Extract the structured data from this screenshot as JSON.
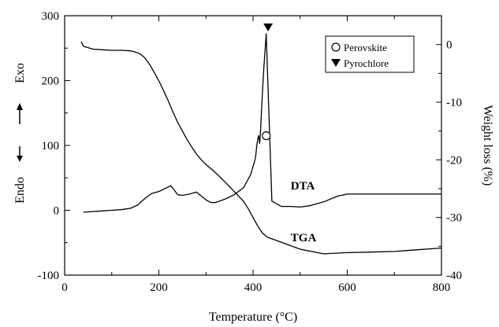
{
  "chart_data": {
    "type": "line",
    "xlabel": "Temperature (°C)",
    "ylabel_left": "Endo ⟷ Exo",
    "ylabel_left_parts": {
      "endo": "Endo",
      "exo": "Exo"
    },
    "ylabel_right": "Weight loss (%)",
    "xlim": [
      0,
      800
    ],
    "ylim_left": [
      -100,
      300
    ],
    "ylim_right": [
      -40,
      5
    ],
    "x_ticks": [
      0,
      200,
      400,
      600,
      800
    ],
    "y_left_ticks": [
      -100,
      0,
      100,
      200,
      300
    ],
    "y_right_ticks": [
      0,
      -10,
      -20,
      -30,
      -40
    ],
    "x_tick_labels": [
      "0",
      "200",
      "400",
      "600",
      "800"
    ],
    "y_left_tick_labels": [
      "-100",
      "0",
      "100",
      "200",
      "300"
    ],
    "y_right_tick_labels": [
      "0",
      "-10",
      "-20",
      "-30",
      "-40"
    ],
    "grid": false,
    "legend_position": "top-right",
    "legend": [
      {
        "label": "Perovskite",
        "marker": "open-circle"
      },
      {
        "label": "Pyrochlore",
        "marker": "filled-triangle-down"
      }
    ],
    "series": [
      {
        "name": "DTA",
        "axis": "left",
        "x": [
          40,
          60,
          80,
          100,
          120,
          140,
          155,
          170,
          185,
          200,
          215,
          225,
          232,
          240,
          250,
          265,
          280,
          290,
          300,
          310,
          320,
          340,
          360,
          380,
          395,
          405,
          408,
          410,
          412,
          414,
          416,
          419,
          423,
          428,
          440,
          460,
          480,
          500,
          520,
          550,
          580,
          600,
          650,
          700,
          750,
          800
        ],
        "y": [
          -3,
          -2,
          -1,
          0,
          1,
          3,
          8,
          18,
          26,
          29,
          34,
          38,
          32,
          24,
          23,
          25,
          28,
          22,
          16,
          12,
          12,
          17,
          24,
          35,
          55,
          80,
          100,
          110,
          115,
          103,
          125,
          170,
          220,
          272,
          14,
          6,
          6,
          5,
          7,
          13,
          22,
          25,
          25,
          25,
          25,
          25
        ]
      },
      {
        "name": "TGA",
        "axis": "right",
        "x": [
          35,
          40,
          60,
          80,
          100,
          120,
          140,
          150,
          160,
          170,
          180,
          190,
          200,
          210,
          220,
          230,
          240,
          250,
          260,
          270,
          280,
          290,
          300,
          310,
          320,
          340,
          360,
          380,
          390,
          400,
          410,
          420,
          430,
          450,
          500,
          550,
          600,
          650,
          700,
          750,
          800
        ],
        "y": [
          0.5,
          -0.3,
          -0.8,
          -0.9,
          -1.0,
          -1.0,
          -1.1,
          -1.3,
          -1.6,
          -2.3,
          -3.4,
          -4.8,
          -6.3,
          -8.0,
          -9.8,
          -11.7,
          -13.5,
          -15.0,
          -16.5,
          -17.8,
          -19.0,
          -20.0,
          -20.8,
          -21.5,
          -22.2,
          -23.8,
          -25.5,
          -27.2,
          -28.5,
          -30.0,
          -31.5,
          -32.7,
          -33.4,
          -34.0,
          -35.5,
          -36.3,
          -36.1,
          -36.0,
          -35.9,
          -35.6,
          -35.3
        ]
      }
    ],
    "annotations": [
      {
        "label": "DTA",
        "x": 480,
        "y": 32
      },
      {
        "label": "TGA",
        "x": 480,
        "y": -48
      }
    ],
    "markers": [
      {
        "kind": "Perovskite",
        "x": 428,
        "y": 115
      },
      {
        "kind": "Pyrochlore",
        "x": 432,
        "y": 282
      }
    ]
  }
}
